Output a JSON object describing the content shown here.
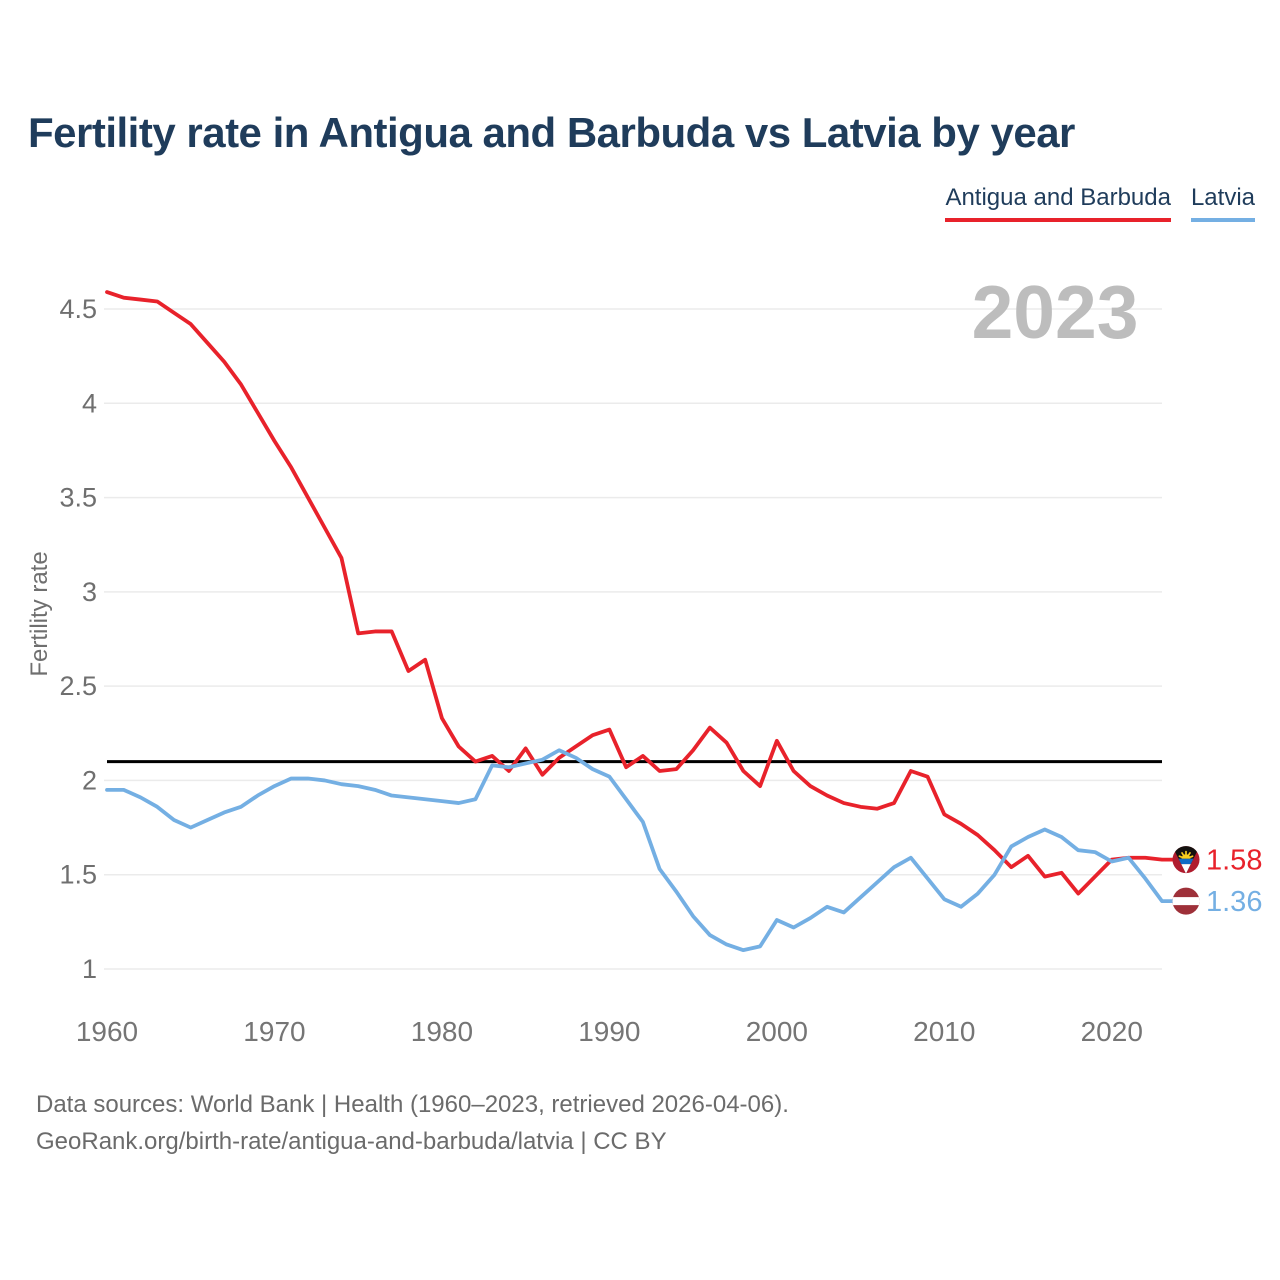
{
  "title": "Fertility rate in Antigua and Barbuda vs Latvia by year",
  "watermark": "2023",
  "legend": {
    "items": [
      {
        "label": "Antigua and Barbuda",
        "color": "#e8222b"
      },
      {
        "label": "Latvia",
        "color": "#74afe3"
      }
    ]
  },
  "end_labels": {
    "antigua": {
      "value": "1.58",
      "color": "#e8222b",
      "flag": "antigua-and-barbuda-flag"
    },
    "latvia": {
      "value": "1.36",
      "color": "#74afe3",
      "flag": "latvia-flag"
    }
  },
  "footer": {
    "line1": "Data sources: World Bank | Health (1960–2023, retrieved 2026-04-06).",
    "line2": "GeoRank.org/birth-rate/antigua-and-barbuda/latvia | CC BY"
  },
  "chart_data": {
    "type": "line",
    "title": "Fertility rate in Antigua and Barbuda vs Latvia by year",
    "xlabel": "",
    "ylabel": "Fertility rate",
    "xlim": [
      1960,
      2023
    ],
    "ylim": [
      1.0,
      4.65
    ],
    "grid": "horizontal",
    "legend_position": "top-right",
    "reference_line": {
      "value": 2.1,
      "color": "#000000"
    },
    "yticks": [
      4.5,
      4,
      3.5,
      3,
      2.5,
      2,
      1.5,
      1
    ],
    "xticks": [
      1960,
      1970,
      1980,
      1990,
      2000,
      2010,
      2020
    ],
    "x": [
      1960,
      1961,
      1962,
      1963,
      1964,
      1965,
      1966,
      1967,
      1968,
      1969,
      1970,
      1971,
      1972,
      1973,
      1974,
      1975,
      1976,
      1977,
      1978,
      1979,
      1980,
      1981,
      1982,
      1983,
      1984,
      1985,
      1986,
      1987,
      1988,
      1989,
      1990,
      1991,
      1992,
      1993,
      1994,
      1995,
      1996,
      1997,
      1998,
      1999,
      2000,
      2001,
      2002,
      2003,
      2004,
      2005,
      2006,
      2007,
      2008,
      2009,
      2010,
      2011,
      2012,
      2013,
      2014,
      2015,
      2016,
      2017,
      2018,
      2019,
      2020,
      2021,
      2022,
      2023
    ],
    "series": [
      {
        "name": "Antigua and Barbuda",
        "color": "#e8222b",
        "values": [
          4.59,
          4.56,
          4.55,
          4.54,
          4.48,
          4.42,
          4.32,
          4.22,
          4.1,
          3.95,
          3.8,
          3.66,
          3.5,
          3.34,
          3.18,
          2.78,
          2.79,
          2.79,
          2.58,
          2.64,
          2.33,
          2.18,
          2.1,
          2.13,
          2.05,
          2.17,
          2.03,
          2.12,
          2.18,
          2.24,
          2.27,
          2.07,
          2.13,
          2.05,
          2.06,
          2.16,
          2.28,
          2.2,
          2.05,
          1.97,
          2.21,
          2.05,
          1.97,
          1.92,
          1.88,
          1.86,
          1.85,
          1.88,
          2.05,
          2.02,
          1.82,
          1.77,
          1.71,
          1.63,
          1.54,
          1.6,
          1.49,
          1.51,
          1.4,
          1.49,
          1.58,
          1.59,
          1.59,
          1.58
        ]
      },
      {
        "name": "Latvia",
        "color": "#74afe3",
        "values": [
          1.95,
          1.95,
          1.91,
          1.86,
          1.79,
          1.75,
          1.79,
          1.83,
          1.86,
          1.92,
          1.97,
          2.01,
          2.01,
          2.0,
          1.98,
          1.97,
          1.95,
          1.92,
          1.91,
          1.9,
          1.89,
          1.88,
          1.9,
          2.08,
          2.07,
          2.09,
          2.11,
          2.16,
          2.12,
          2.06,
          2.02,
          1.9,
          1.78,
          1.53,
          1.41,
          1.28,
          1.18,
          1.13,
          1.1,
          1.12,
          1.26,
          1.22,
          1.27,
          1.33,
          1.3,
          1.38,
          1.46,
          1.54,
          1.59,
          1.48,
          1.37,
          1.33,
          1.4,
          1.5,
          1.65,
          1.7,
          1.74,
          1.7,
          1.63,
          1.62,
          1.57,
          1.59,
          1.48,
          1.36
        ]
      }
    ]
  }
}
